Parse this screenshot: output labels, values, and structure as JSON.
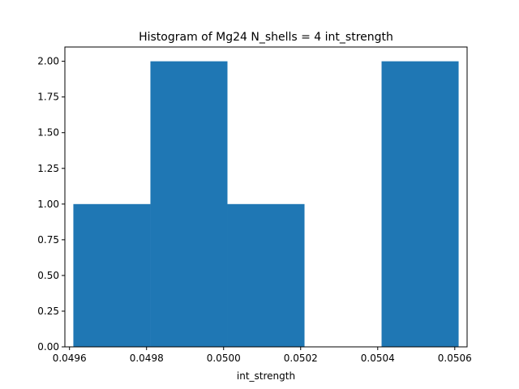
{
  "chart_data": {
    "type": "bar",
    "title": "Histogram of Mg24 N_shells = 4 int_strength",
    "xlabel": "int_strength",
    "ylabel": "",
    "bin_edges": [
      0.04961,
      0.04981,
      0.05001,
      0.05021,
      0.05041,
      0.05061
    ],
    "values": [
      1,
      2,
      1,
      0,
      2
    ],
    "xlim": [
      0.049588,
      0.050632
    ],
    "ylim": [
      0,
      2.1
    ],
    "xticks": [
      0.0496,
      0.0498,
      0.05,
      0.0502,
      0.0504,
      0.0506
    ],
    "xtick_labels": [
      "0.0496",
      "0.0498",
      "0.0500",
      "0.0502",
      "0.0504",
      "0.0506"
    ],
    "yticks": [
      0.0,
      0.25,
      0.5,
      0.75,
      1.0,
      1.25,
      1.5,
      1.75,
      2.0
    ],
    "ytick_labels": [
      "0.00",
      "0.25",
      "0.50",
      "0.75",
      "1.00",
      "1.25",
      "1.50",
      "1.75",
      "2.00"
    ],
    "bar_color": "#1f77b4",
    "grid": false,
    "legend": false
  }
}
